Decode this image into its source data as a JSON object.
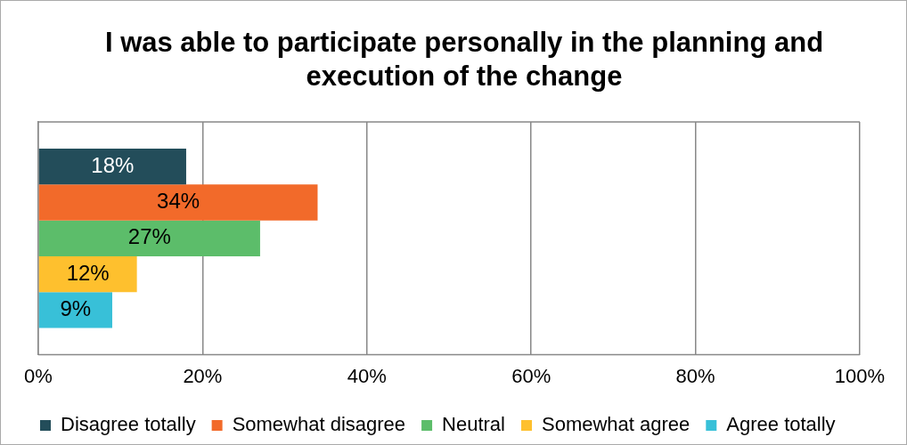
{
  "chart_data": {
    "type": "bar",
    "orientation": "horizontal",
    "title": "I was able to participate personally in the planning and execution of the change",
    "categories": [
      null
    ],
    "series": [
      {
        "name": "Disagree totally",
        "color": "#234d5a",
        "values": [
          18
        ]
      },
      {
        "name": "Somewhat disagree",
        "color": "#f26a2a",
        "values": [
          34
        ]
      },
      {
        "name": "Neutral",
        "color": "#5cbd6a",
        "values": [
          27
        ]
      },
      {
        "name": "Somewhat agree",
        "color": "#fec02e",
        "values": [
          12
        ]
      },
      {
        "name": "Agree totally",
        "color": "#38c0d8",
        "values": [
          9
        ]
      }
    ],
    "xlim": [
      0,
      100
    ],
    "xticks": [
      {
        "value": 0,
        "label": "0%"
      },
      {
        "value": 20,
        "label": "20%"
      },
      {
        "value": 40,
        "label": "40%"
      },
      {
        "value": 60,
        "label": "60%"
      },
      {
        "value": 80,
        "label": "80%"
      },
      {
        "value": 100,
        "label": "100%"
      }
    ],
    "value_labels": [
      "18%",
      "34%",
      "27%",
      "12%",
      "9%"
    ],
    "grid": "x",
    "legend": "bottom"
  }
}
